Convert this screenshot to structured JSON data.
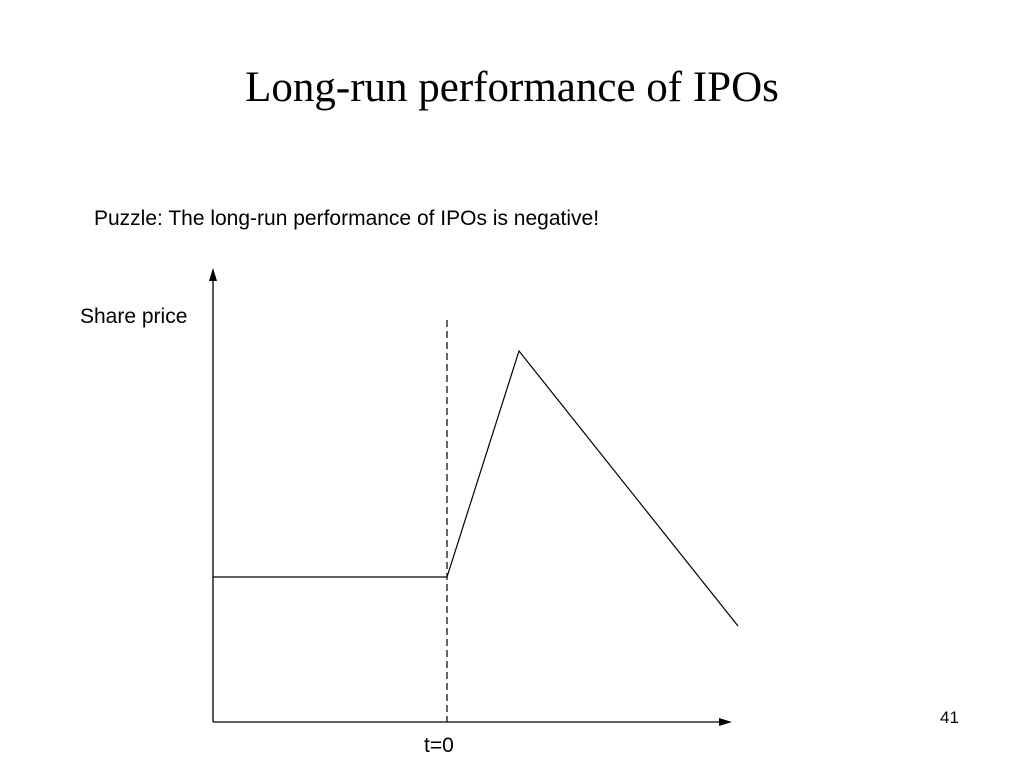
{
  "slide": {
    "title": "Long-run performance of IPOs",
    "puzzle_text": "Puzzle: The long-run performance of IPOs is negative!",
    "slide_number": "41"
  },
  "diagram": {
    "y_axis_label": "Share price",
    "x_marker_label": "t=0",
    "line_color": "#000000",
    "background_color": "#ffffff"
  }
}
